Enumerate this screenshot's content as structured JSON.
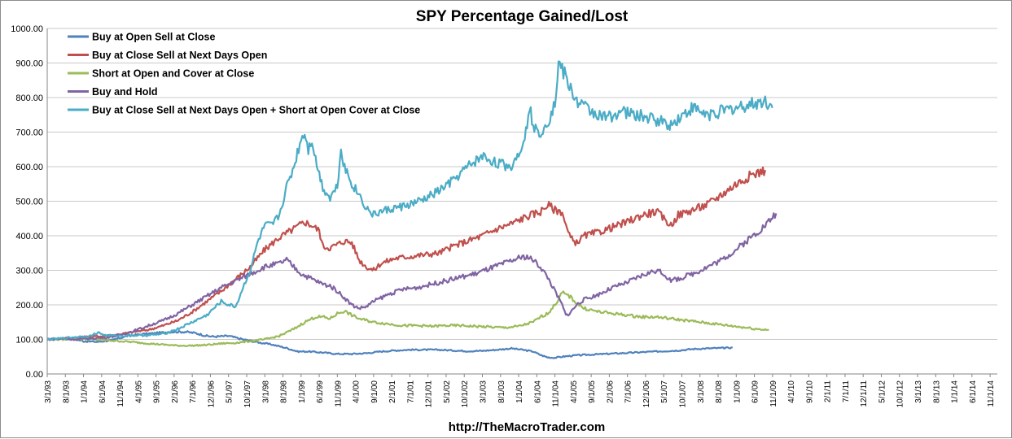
{
  "chart_data": {
    "type": "line",
    "title": "SPY Percentage Gained/Lost",
    "source": "http://TheMacroTrader.com",
    "xlabel": "",
    "ylabel": "",
    "ylim": [
      0,
      1000
    ],
    "grid": true,
    "legend_position": "top-left",
    "y_ticks": [
      "0.00",
      "100.00",
      "200.00",
      "300.00",
      "400.00",
      "500.00",
      "600.00",
      "700.00",
      "800.00",
      "900.00",
      "1000.00"
    ],
    "x_ticks": [
      "3/1/93",
      "8/1/93",
      "1/1/94",
      "6/1/94",
      "11/1/94",
      "4/1/95",
      "9/1/95",
      "2/1/96",
      "7/1/96",
      "12/1/96",
      "5/1/97",
      "10/1/97",
      "3/1/98",
      "8/1/98",
      "1/1/99",
      "6/1/99",
      "11/1/99",
      "4/1/00",
      "9/1/00",
      "2/1/01",
      "7/1/01",
      "12/1/01",
      "5/1/02",
      "10/1/02",
      "3/1/03",
      "8/1/03",
      "1/1/04",
      "6/1/04",
      "11/1/04",
      "4/1/05",
      "9/1/05",
      "2/1/06",
      "7/1/06",
      "12/1/06",
      "5/1/07",
      "10/1/07",
      "3/1/08",
      "8/1/08",
      "1/1/09",
      "6/1/09",
      "11/1/09",
      "4/1/10",
      "9/1/10",
      "2/1/11",
      "7/1/11",
      "12/1/11",
      "5/1/12",
      "10/1/12",
      "3/1/13",
      "8/1/13",
      "1/1/14",
      "6/1/14",
      "11/1/14"
    ],
    "series": [
      {
        "name": "Buy at Open Sell at Close",
        "color": "#4f81bd",
        "points": [
          [
            0,
            100
          ],
          [
            4,
            102
          ],
          [
            8,
            100
          ],
          [
            10,
            95
          ],
          [
            14,
            93
          ],
          [
            18,
            98
          ],
          [
            22,
            110
          ],
          [
            26,
            115
          ],
          [
            30,
            118
          ],
          [
            34,
            122
          ],
          [
            38,
            122
          ],
          [
            41,
            118
          ],
          [
            44,
            110
          ],
          [
            46,
            108
          ],
          [
            50,
            110
          ],
          [
            54,
            100
          ],
          [
            58,
            92
          ],
          [
            62,
            85
          ],
          [
            66,
            75
          ],
          [
            69,
            65
          ],
          [
            72,
            65
          ],
          [
            76,
            62
          ],
          [
            80,
            58
          ],
          [
            84,
            58
          ],
          [
            88,
            60
          ],
          [
            92,
            65
          ],
          [
            96,
            68
          ],
          [
            100,
            70
          ],
          [
            104,
            70
          ],
          [
            108,
            70
          ],
          [
            112,
            68
          ],
          [
            116,
            66
          ],
          [
            120,
            67
          ],
          [
            124,
            70
          ],
          [
            128,
            74
          ],
          [
            131,
            70
          ],
          [
            134,
            65
          ],
          [
            136,
            55
          ],
          [
            138,
            48
          ],
          [
            140,
            47
          ],
          [
            142,
            50
          ],
          [
            146,
            54
          ],
          [
            150,
            56
          ],
          [
            154,
            58
          ],
          [
            158,
            60
          ],
          [
            162,
            62
          ],
          [
            166,
            64
          ],
          [
            170,
            66
          ],
          [
            174,
            68
          ],
          [
            178,
            72
          ],
          [
            182,
            74
          ],
          [
            186,
            75
          ],
          [
            189,
            76
          ]
        ]
      },
      {
        "name": "Buy at Close Sell at Next Days Open",
        "color": "#c0504d",
        "points": [
          [
            0,
            100
          ],
          [
            4,
            103
          ],
          [
            8,
            105
          ],
          [
            12,
            108
          ],
          [
            16,
            110
          ],
          [
            20,
            115
          ],
          [
            24,
            122
          ],
          [
            28,
            128
          ],
          [
            32,
            140
          ],
          [
            36,
            155
          ],
          [
            40,
            180
          ],
          [
            44,
            210
          ],
          [
            48,
            240
          ],
          [
            52,
            275
          ],
          [
            56,
            310
          ],
          [
            60,
            360
          ],
          [
            64,
            395
          ],
          [
            68,
            420
          ],
          [
            71,
            440
          ],
          [
            73,
            430
          ],
          [
            75,
            415
          ],
          [
            76,
            370
          ],
          [
            78,
            365
          ],
          [
            82,
            385
          ],
          [
            84,
            380
          ],
          [
            86,
            330
          ],
          [
            88,
            310
          ],
          [
            90,
            300
          ],
          [
            92,
            320
          ],
          [
            96,
            335
          ],
          [
            100,
            340
          ],
          [
            104,
            345
          ],
          [
            108,
            350
          ],
          [
            112,
            370
          ],
          [
            116,
            385
          ],
          [
            120,
            400
          ],
          [
            124,
            420
          ],
          [
            128,
            435
          ],
          [
            132,
            455
          ],
          [
            136,
            470
          ],
          [
            138,
            490
          ],
          [
            140,
            475
          ],
          [
            142,
            470
          ],
          [
            143,
            430
          ],
          [
            144,
            400
          ],
          [
            145,
            385
          ],
          [
            146,
            380
          ],
          [
            148,
            400
          ],
          [
            152,
            410
          ],
          [
            156,
            425
          ],
          [
            160,
            440
          ],
          [
            164,
            460
          ],
          [
            168,
            470
          ],
          [
            171,
            440
          ],
          [
            172,
            430
          ],
          [
            174,
            460
          ],
          [
            178,
            475
          ],
          [
            182,
            490
          ],
          [
            186,
            520
          ],
          [
            190,
            550
          ],
          [
            194,
            575
          ],
          [
            198,
            590
          ]
        ]
      },
      {
        "name": "Short at Open and Cover at Close",
        "color": "#9bbb59",
        "points": [
          [
            0,
            100
          ],
          [
            4,
            100
          ],
          [
            8,
            102
          ],
          [
            12,
            100
          ],
          [
            16,
            98
          ],
          [
            20,
            95
          ],
          [
            24,
            92
          ],
          [
            28,
            88
          ],
          [
            32,
            85
          ],
          [
            36,
            82
          ],
          [
            40,
            82
          ],
          [
            44,
            84
          ],
          [
            48,
            88
          ],
          [
            52,
            90
          ],
          [
            56,
            95
          ],
          [
            60,
            100
          ],
          [
            64,
            110
          ],
          [
            68,
            130
          ],
          [
            71,
            150
          ],
          [
            74,
            165
          ],
          [
            76,
            165
          ],
          [
            78,
            160
          ],
          [
            80,
            175
          ],
          [
            82,
            182
          ],
          [
            84,
            170
          ],
          [
            86,
            160
          ],
          [
            88,
            155
          ],
          [
            90,
            150
          ],
          [
            94,
            145
          ],
          [
            98,
            140
          ],
          [
            102,
            140
          ],
          [
            106,
            138
          ],
          [
            110,
            140
          ],
          [
            114,
            140
          ],
          [
            118,
            138
          ],
          [
            122,
            136
          ],
          [
            126,
            134
          ],
          [
            130,
            138
          ],
          [
            134,
            150
          ],
          [
            136,
            165
          ],
          [
            138,
            175
          ],
          [
            140,
            200
          ],
          [
            142,
            235
          ],
          [
            144,
            225
          ],
          [
            146,
            205
          ],
          [
            148,
            190
          ],
          [
            152,
            180
          ],
          [
            156,
            175
          ],
          [
            160,
            170
          ],
          [
            164,
            165
          ],
          [
            168,
            165
          ],
          [
            172,
            160
          ],
          [
            176,
            155
          ],
          [
            180,
            150
          ],
          [
            184,
            145
          ],
          [
            188,
            140
          ],
          [
            192,
            135
          ],
          [
            196,
            130
          ],
          [
            199,
            128
          ]
        ]
      },
      {
        "name": "Buy and Hold",
        "color": "#8064a2",
        "points": [
          [
            0,
            100
          ],
          [
            4,
            102
          ],
          [
            8,
            100
          ],
          [
            12,
            103
          ],
          [
            16,
            105
          ],
          [
            20,
            112
          ],
          [
            24,
            125
          ],
          [
            28,
            140
          ],
          [
            32,
            155
          ],
          [
            36,
            175
          ],
          [
            40,
            200
          ],
          [
            44,
            225
          ],
          [
            48,
            250
          ],
          [
            52,
            270
          ],
          [
            56,
            290
          ],
          [
            60,
            310
          ],
          [
            64,
            320
          ],
          [
            66,
            330
          ],
          [
            68,
            310
          ],
          [
            70,
            290
          ],
          [
            72,
            280
          ],
          [
            74,
            270
          ],
          [
            76,
            260
          ],
          [
            78,
            255
          ],
          [
            80,
            240
          ],
          [
            82,
            220
          ],
          [
            84,
            200
          ],
          [
            86,
            190
          ],
          [
            88,
            195
          ],
          [
            90,
            210
          ],
          [
            94,
            230
          ],
          [
            98,
            245
          ],
          [
            102,
            250
          ],
          [
            106,
            260
          ],
          [
            110,
            270
          ],
          [
            114,
            280
          ],
          [
            118,
            290
          ],
          [
            122,
            305
          ],
          [
            126,
            320
          ],
          [
            130,
            335
          ],
          [
            132,
            340
          ],
          [
            134,
            330
          ],
          [
            136,
            310
          ],
          [
            138,
            280
          ],
          [
            140,
            240
          ],
          [
            142,
            200
          ],
          [
            143,
            170
          ],
          [
            144,
            175
          ],
          [
            146,
            200
          ],
          [
            148,
            215
          ],
          [
            152,
            230
          ],
          [
            156,
            250
          ],
          [
            160,
            265
          ],
          [
            164,
            285
          ],
          [
            168,
            300
          ],
          [
            170,
            290
          ],
          [
            172,
            270
          ],
          [
            174,
            275
          ],
          [
            178,
            290
          ],
          [
            182,
            310
          ],
          [
            186,
            330
          ],
          [
            190,
            360
          ],
          [
            194,
            395
          ],
          [
            198,
            430
          ],
          [
            201,
            465
          ]
        ]
      },
      {
        "name": "Buy at Close Sell at Next Days Open + Short at Open Cover at Close",
        "color": "#4bacc6",
        "points": [
          [
            0,
            100
          ],
          [
            4,
            103
          ],
          [
            8,
            107
          ],
          [
            12,
            110
          ],
          [
            14,
            120
          ],
          [
            16,
            112
          ],
          [
            20,
            110
          ],
          [
            24,
            112
          ],
          [
            28,
            112
          ],
          [
            32,
            116
          ],
          [
            36,
            130
          ],
          [
            40,
            150
          ],
          [
            44,
            170
          ],
          [
            48,
            210
          ],
          [
            50,
            200
          ],
          [
            52,
            195
          ],
          [
            54,
            250
          ],
          [
            56,
            300
          ],
          [
            58,
            380
          ],
          [
            60,
            430
          ],
          [
            62,
            430
          ],
          [
            64,
            460
          ],
          [
            66,
            540
          ],
          [
            68,
            600
          ],
          [
            70,
            680
          ],
          [
            71,
            700
          ],
          [
            72,
            650
          ],
          [
            73,
            680
          ],
          [
            74,
            620
          ],
          [
            76,
            540
          ],
          [
            78,
            510
          ],
          [
            80,
            545
          ],
          [
            81,
            650
          ],
          [
            82,
            600
          ],
          [
            84,
            550
          ],
          [
            86,
            520
          ],
          [
            88,
            480
          ],
          [
            90,
            460
          ],
          [
            92,
            470
          ],
          [
            96,
            480
          ],
          [
            100,
            490
          ],
          [
            104,
            505
          ],
          [
            108,
            530
          ],
          [
            112,
            560
          ],
          [
            116,
            600
          ],
          [
            120,
            630
          ],
          [
            124,
            610
          ],
          [
            128,
            600
          ],
          [
            130,
            640
          ],
          [
            132,
            700
          ],
          [
            133,
            780
          ],
          [
            134,
            710
          ],
          [
            136,
            700
          ],
          [
            138,
            730
          ],
          [
            140,
            780
          ],
          [
            141,
            900
          ],
          [
            142,
            880
          ],
          [
            143,
            860
          ],
          [
            144,
            830
          ],
          [
            146,
            790
          ],
          [
            150,
            760
          ],
          [
            154,
            740
          ],
          [
            158,
            760
          ],
          [
            162,
            750
          ],
          [
            166,
            740
          ],
          [
            170,
            730
          ],
          [
            172,
            720
          ],
          [
            174,
            740
          ],
          [
            178,
            770
          ],
          [
            182,
            750
          ],
          [
            186,
            760
          ],
          [
            190,
            770
          ],
          [
            194,
            780
          ],
          [
            198,
            790
          ],
          [
            200,
            770
          ]
        ]
      }
    ]
  }
}
